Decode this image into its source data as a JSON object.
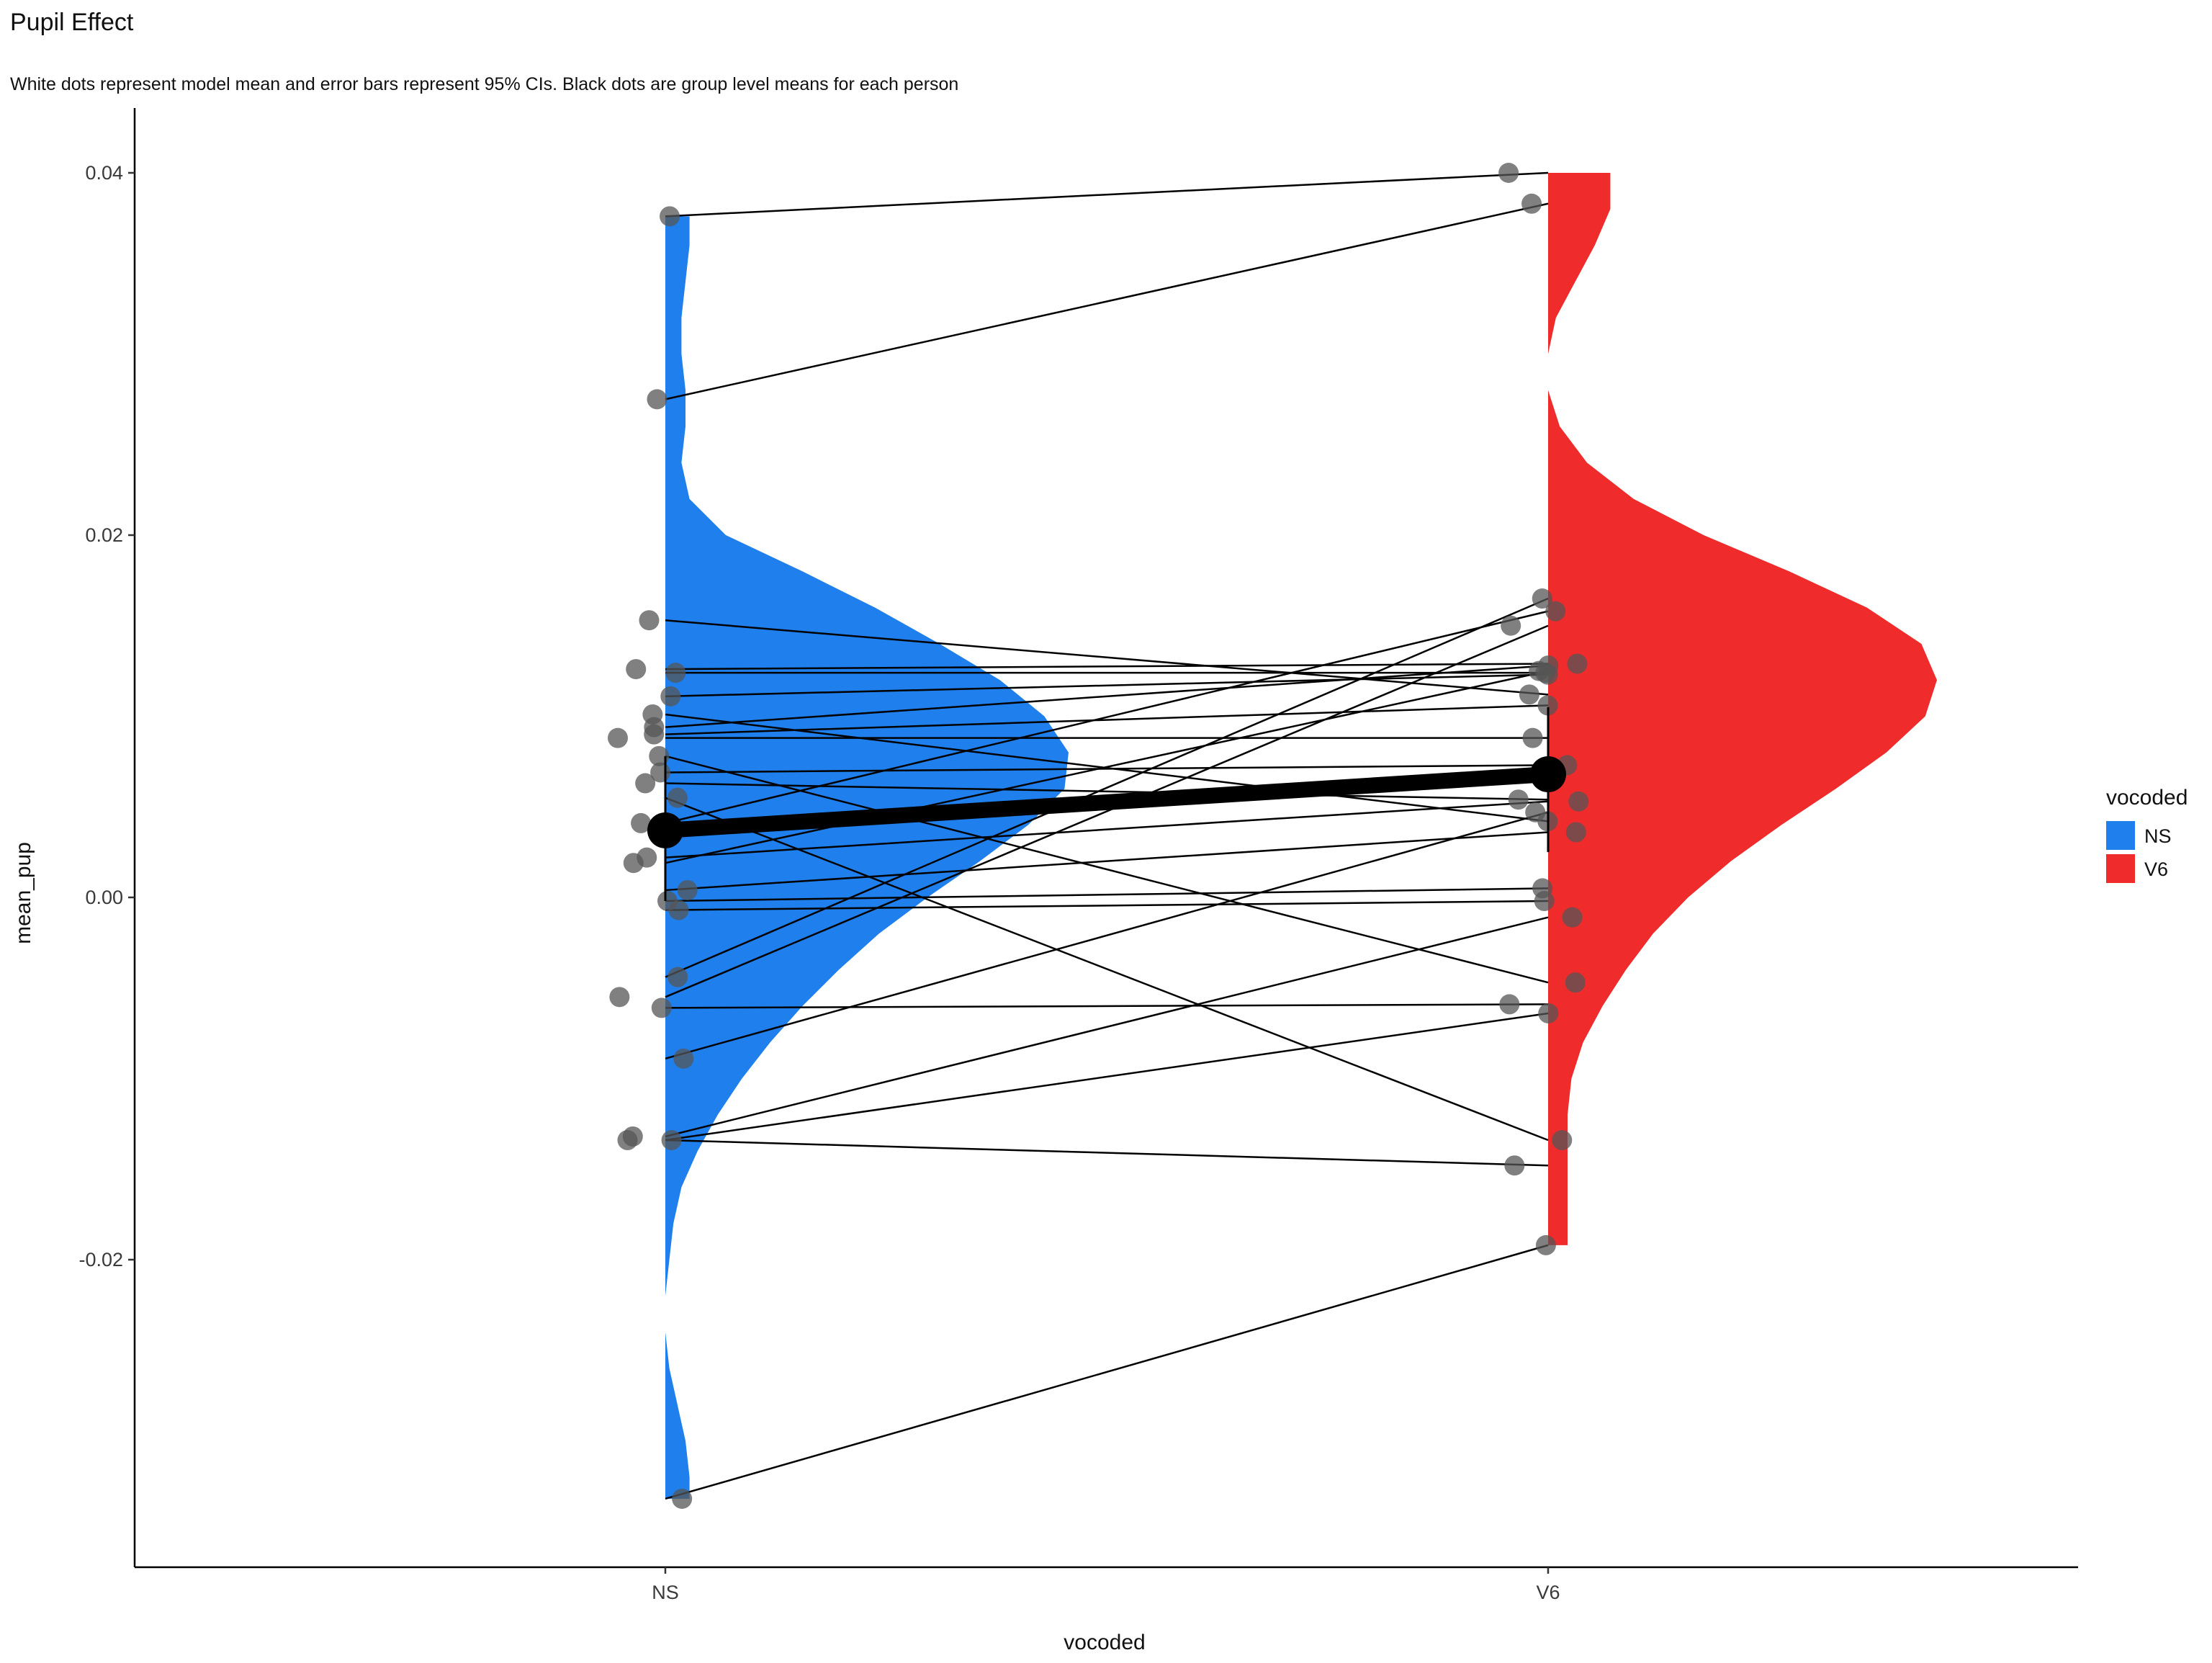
{
  "chart_data": {
    "type": "scatter",
    "title": "Pupil Effect",
    "subtitle": "White dots represent model mean and error bars represent 95% CIs. Black dots are group level means for each person",
    "xlabel": "vocoded",
    "ylabel": "mean_pup",
    "categories": [
      "NS",
      "V6"
    ],
    "ylim": [
      -0.0367,
      0.0437
    ],
    "y_ticks": [
      0.04,
      0.02,
      0.0,
      -0.02
    ],
    "y_tick_labels": [
      "0.04",
      "0.02",
      "0.00",
      "-0.02"
    ],
    "grid": false,
    "colors": {
      "NS": "#1f7fed",
      "V6": "#ef2b2b",
      "lines": "#000000",
      "points": "#555555"
    },
    "legend": {
      "title": "vocoded",
      "position": "right",
      "entries": [
        {
          "label": "NS",
          "color": "#1f7fed"
        },
        {
          "label": "V6",
          "color": "#ef2b2b"
        }
      ]
    },
    "density": {
      "NS": {
        "y": [
          0.0376,
          0.036,
          0.034,
          0.032,
          0.03,
          0.028,
          0.026,
          0.024,
          0.022,
          0.02,
          0.018,
          0.016,
          0.014,
          0.012,
          0.01,
          0.008,
          0.006,
          0.004,
          0.002,
          0.0,
          -0.002,
          -0.004,
          -0.006,
          -0.008,
          -0.01,
          -0.012,
          -0.014,
          -0.016,
          -0.018,
          -0.02,
          -0.022,
          -0.024,
          -0.026,
          -0.028,
          -0.03,
          -0.032,
          -0.0332
        ],
        "width": [
          0.06,
          0.06,
          0.05,
          0.04,
          0.04,
          0.05,
          0.05,
          0.04,
          0.06,
          0.15,
          0.34,
          0.52,
          0.68,
          0.83,
          0.94,
          1.0,
          0.99,
          0.9,
          0.78,
          0.65,
          0.53,
          0.43,
          0.34,
          0.26,
          0.19,
          0.13,
          0.08,
          0.04,
          0.02,
          0.01,
          0.0,
          0.0,
          0.01,
          0.03,
          0.05,
          0.06,
          0.06
        ]
      },
      "V6": {
        "y": [
          0.04,
          0.038,
          0.036,
          0.034,
          0.032,
          0.03,
          0.028,
          0.026,
          0.024,
          0.022,
          0.02,
          0.018,
          0.016,
          0.014,
          0.012,
          0.01,
          0.008,
          0.006,
          0.004,
          0.002,
          0.0,
          -0.002,
          -0.004,
          -0.006,
          -0.008,
          -0.01,
          -0.012,
          -0.014,
          -0.016,
          -0.018,
          -0.0192
        ],
        "width": [
          0.16,
          0.16,
          0.12,
          0.07,
          0.02,
          0.0,
          0.0,
          0.03,
          0.1,
          0.22,
          0.4,
          0.62,
          0.82,
          0.96,
          1.0,
          0.97,
          0.87,
          0.74,
          0.6,
          0.47,
          0.36,
          0.27,
          0.2,
          0.14,
          0.09,
          0.06,
          0.05,
          0.05,
          0.05,
          0.05,
          0.05
        ]
      }
    },
    "model_means": {
      "NS": {
        "mean": 0.0037,
        "ci": [
          -0.0002,
          0.0078
        ]
      },
      "V6": {
        "mean": 0.0068,
        "ci": [
          0.0025,
          0.0105
        ]
      }
    },
    "participants": [
      {
        "NS": 0.0376,
        "V6": 0.04
      },
      {
        "NS": 0.0275,
        "V6": 0.0383
      },
      {
        "NS": 0.0153,
        "V6": 0.0112
      },
      {
        "NS": 0.0126,
        "V6": 0.0129
      },
      {
        "NS": 0.0124,
        "V6": 0.0124
      },
      {
        "NS": 0.0111,
        "V6": 0.0123
      },
      {
        "NS": 0.0101,
        "V6": 0.0042
      },
      {
        "NS": 0.0094,
        "V6": 0.0128
      },
      {
        "NS": 0.009,
        "V6": 0.0106
      },
      {
        "NS": 0.0088,
        "V6": 0.0088
      },
      {
        "NS": 0.0078,
        "V6": -0.0047
      },
      {
        "NS": 0.0069,
        "V6": 0.0073
      },
      {
        "NS": 0.0063,
        "V6": 0.0054
      },
      {
        "NS": 0.0055,
        "V6": -0.0134
      },
      {
        "NS": 0.0041,
        "V6": 0.0158
      },
      {
        "NS": 0.0022,
        "V6": 0.0053
      },
      {
        "NS": 0.0019,
        "V6": 0.0125
      },
      {
        "NS": 0.0004,
        "V6": 0.0036
      },
      {
        "NS": -0.0002,
        "V6": 0.0005
      },
      {
        "NS": -0.0007,
        "V6": -0.0002
      },
      {
        "NS": -0.0044,
        "V6": 0.0165
      },
      {
        "NS": -0.0055,
        "V6": 0.015
      },
      {
        "NS": -0.0061,
        "V6": -0.0059
      },
      {
        "NS": -0.0089,
        "V6": 0.0047
      },
      {
        "NS": -0.0132,
        "V6": -0.0011
      },
      {
        "NS": -0.0134,
        "V6": -0.0064
      },
      {
        "NS": -0.0134,
        "V6": -0.0148
      },
      {
        "NS": -0.0332,
        "V6": -0.0192
      }
    ]
  }
}
